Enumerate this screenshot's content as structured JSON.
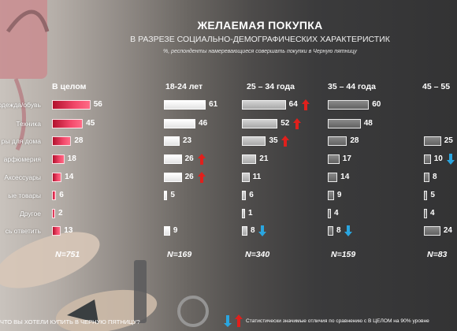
{
  "title": "ЖЕЛАЕМАЯ ПОКУПКА",
  "subtitle": "В РАЗРЕЗЕ СОЦИАЛЬНО-ДЕМОГРАФИЧЕСКИХ ХАРАКТЕРИСТИК",
  "note": "%,   респонденты намеревающиеся совершать покупки в Черную пятницу",
  "footer": {
    "question": "ЧТО ВЫ ХОТЕЛИ КУПИТЬ  В ЧЕРНУЮ ПЯТНИЦУ?",
    "legend": "Статистически  значимые отличия  по сравнению с В ЦЕЛОМ на 90% уровне"
  },
  "colors": {
    "total_bar": "#e8365a",
    "age_18_24": "#efefef",
    "age_25_34": "#bfbfbf",
    "age_35_44": "#767676",
    "arrow_up": "#e0201c",
    "arrow_down": "#2aa6e0",
    "text": "#ffffff"
  },
  "chart_data": {
    "type": "bar",
    "orientation": "horizontal",
    "categories": [
      "Одежда/обувь",
      "Техника",
      "Товары для дома",
      "Парфюмерия",
      "Аксессуары",
      "Детские товары",
      "Другое",
      "Затрудняюсь ответить"
    ],
    "category_labels_visible": [
      "одежда/обувь",
      "Техника",
      "ры для дома",
      "арфюмерия",
      "Аксессуары",
      "ые товары",
      "Другое",
      "сь ответить"
    ],
    "series": [
      {
        "name": "В целом",
        "values": [
          56,
          45,
          28,
          18,
          14,
          6,
          2,
          13
        ],
        "n": "N=751",
        "sig": [
          "",
          "",
          "",
          "",
          "",
          "",
          "",
          ""
        ]
      },
      {
        "name": "18-24 лет",
        "values": [
          61,
          46,
          23,
          26,
          26,
          5,
          null,
          9
        ],
        "n": "N=169",
        "sig": [
          "",
          "",
          "",
          "up",
          "up",
          "",
          "",
          ""
        ]
      },
      {
        "name": "25 – 34 года",
        "values": [
          64,
          52,
          35,
          21,
          11,
          6,
          1,
          8
        ],
        "n": "N=340",
        "sig": [
          "up",
          "up",
          "up",
          "",
          "",
          "",
          "",
          "down"
        ]
      },
      {
        "name": "35 – 44 года",
        "values": [
          60,
          48,
          28,
          17,
          14,
          9,
          4,
          8
        ],
        "n": "N=159",
        "sig": [
          "",
          "",
          "",
          "",
          "",
          "",
          "",
          "down"
        ]
      },
      {
        "name": "45 – 55",
        "values": [
          null,
          null,
          25,
          10,
          8,
          5,
          4,
          24
        ],
        "n": "N=83",
        "sig": [
          "",
          "",
          "",
          "down",
          "",
          "",
          "",
          ""
        ]
      }
    ],
    "unit": "%"
  }
}
